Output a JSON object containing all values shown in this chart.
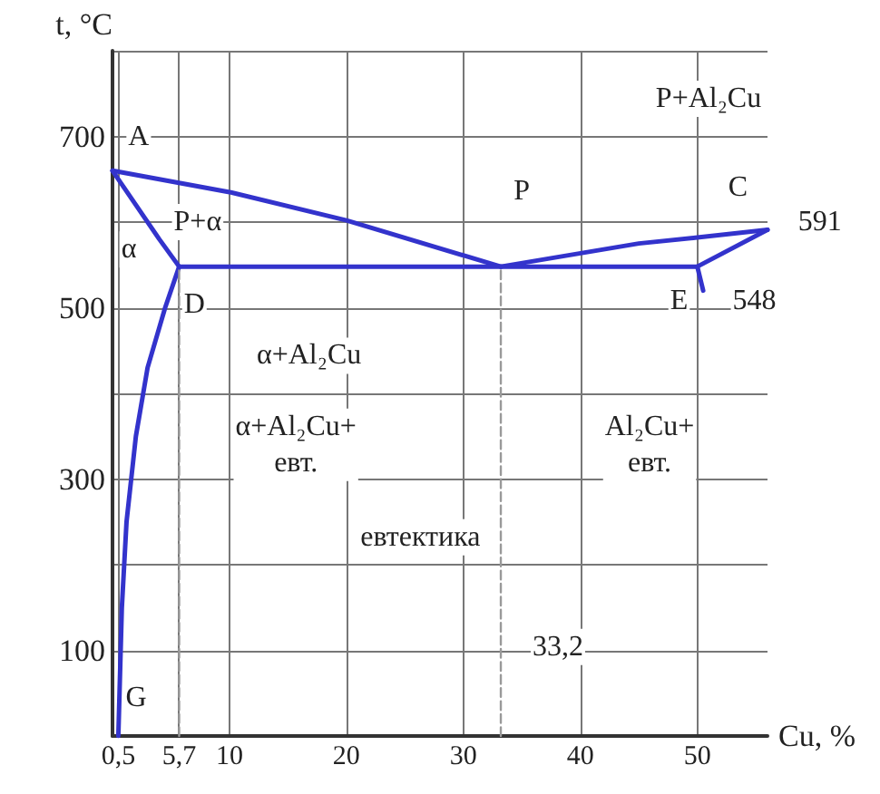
{
  "chart_data": {
    "type": "line",
    "xlabel": "Cu, %",
    "ylabel": "t, °C",
    "xlim": [
      0,
      56
    ],
    "ylim": [
      0,
      800
    ],
    "xticks": [
      {
        "value": 0.5,
        "label": "0,5"
      },
      {
        "value": 5.7,
        "label": "5,7"
      },
      10,
      20,
      30,
      40,
      50
    ],
    "yticks": [
      100,
      {
        "value": 200,
        "label": null
      },
      300,
      {
        "value": 400,
        "label": null
      },
      500,
      {
        "value": 600,
        "label": null
      },
      700,
      {
        "value": 800,
        "label": null
      }
    ],
    "grid": true,
    "marker": "none",
    "series": [
      {
        "color": "#3333cc",
        "x": [
          0,
          10,
          20,
          33.2
        ],
        "values": [
          660,
          635,
          602,
          548
        ]
      },
      {
        "color": "#3333cc",
        "x": [
          33.2,
          45,
          50,
          56
        ],
        "values": [
          548,
          575,
          582,
          591
        ]
      },
      {
        "color": "#3333cc",
        "x": [
          0,
          2,
          4,
          5.7
        ],
        "values": [
          660,
          620,
          580,
          548
        ]
      },
      {
        "color": "#3333cc",
        "x": [
          5.7,
          4.5,
          3,
          2,
          1.2,
          0.8,
          0.5
        ],
        "values": [
          548,
          500,
          430,
          350,
          250,
          150,
          0
        ]
      },
      {
        "color": "#3333cc",
        "x": [
          5.7,
          50
        ],
        "values": [
          548,
          548
        ]
      },
      {
        "color": "#3333cc",
        "x": [
          50,
          56
        ],
        "values": [
          548,
          591
        ]
      },
      {
        "color": "#3333cc",
        "x": [
          50,
          50.5
        ],
        "values": [
          548,
          520
        ]
      },
      {
        "color": "#999999",
        "line_style": "dashed",
        "x": [
          5.7,
          5.7
        ],
        "values": [
          0,
          548
        ]
      },
      {
        "color": "#999999",
        "line_style": "dashed",
        "x": [
          33.2,
          33.2
        ],
        "values": [
          0,
          548
        ]
      }
    ],
    "annotations": [
      "A",
      "P+α",
      "α",
      "D",
      "α+Al₂Cu",
      "α+Al₂Cu+\nевт.",
      "P",
      "C",
      "591",
      "E",
      "548",
      "P+Al₂Cu",
      "евтектика",
      "Al₂Cu+\nевт.",
      "33,2",
      "G"
    ]
  }
}
